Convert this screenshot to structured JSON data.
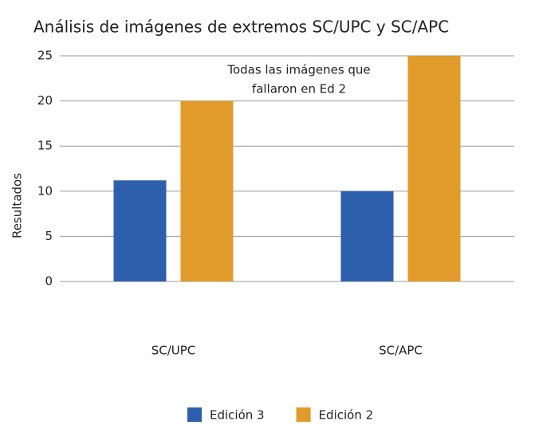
{
  "chart_data": {
    "type": "bar",
    "title": "Análisis de imágenes de extremos SC/UPC y SC/APC",
    "y_label": "Resultados",
    "annotation": [
      "Todas las imágenes que",
      "fallaron en Ed 2"
    ],
    "categories": [
      "SC/UPC",
      "SC/APC"
    ],
    "series": [
      {
        "name": "Edición 3",
        "color": "#2e5fad",
        "values": [
          11.2,
          10
        ]
      },
      {
        "name": "Edición 2",
        "color": "#e09b2b",
        "values": [
          20,
          25
        ]
      }
    ],
    "ylim": [
      0,
      25
    ],
    "yticks": [
      0,
      5,
      10,
      15,
      20,
      25
    ],
    "grid": true,
    "legend": "bottom"
  }
}
